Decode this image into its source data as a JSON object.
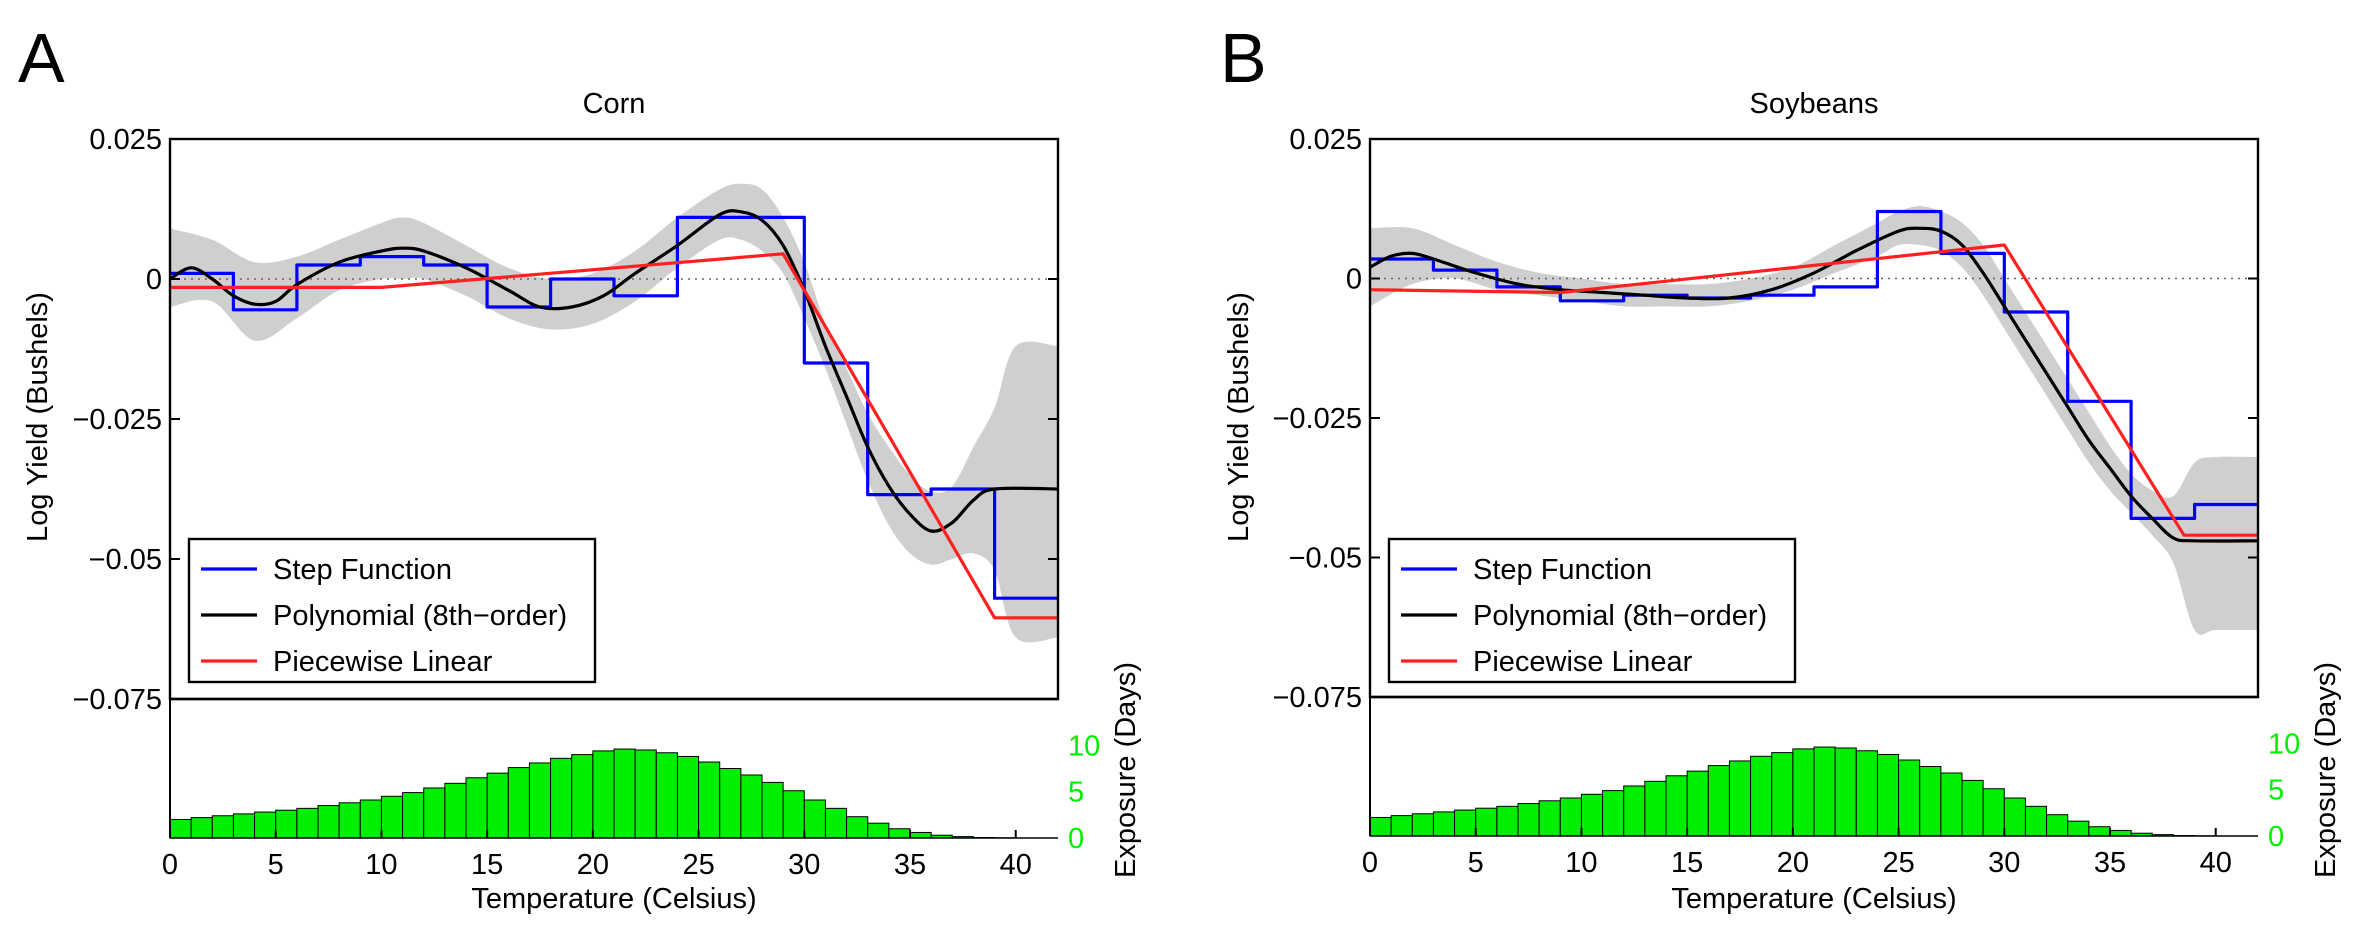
{
  "colors": {
    "step": "#0000ff",
    "polynomial": "#000000",
    "piecewise": "#ff2020",
    "band": "#cfcfcf",
    "histogram": "#00ee00",
    "exposure_axis": "#00ee00"
  },
  "chart_data": [
    {
      "type": "line",
      "panel_label": "A",
      "title": "Corn",
      "xlabel": "Temperature (Celsius)",
      "ylabel": "Log Yield (Bushels)",
      "xlim": [
        0,
        42
      ],
      "ylim": [
        -0.075,
        0.025
      ],
      "x_ticks": [
        "0",
        "5",
        "10",
        "15",
        "20",
        "25",
        "30",
        "35",
        "40"
      ],
      "y_ticks": [
        "0.025",
        "0",
        "−0.025",
        "−0.05",
        "−0.075"
      ],
      "zero_line": "dotted",
      "legend": [
        "Step Function",
        "Polynomial (8th−order)",
        "Piecewise Linear"
      ],
      "legend_position": "bottom-left",
      "series": [
        {
          "name": "Step Function",
          "shape": "step",
          "points": [
            [
              0,
              0.001
            ],
            [
              3,
              0.001
            ],
            [
              3,
              -0.0055
            ],
            [
              6,
              -0.0055
            ],
            [
              6,
              0.0025
            ],
            [
              9,
              0.0025
            ],
            [
              9,
              0.004
            ],
            [
              12,
              0.004
            ],
            [
              12,
              0.0025
            ],
            [
              15,
              0.0025
            ],
            [
              15,
              -0.005
            ],
            [
              18,
              -0.005
            ],
            [
              18,
              0.0
            ],
            [
              21,
              0.0
            ],
            [
              21,
              -0.003
            ],
            [
              24,
              -0.003
            ],
            [
              24,
              0.011
            ],
            [
              30,
              0.011
            ],
            [
              30,
              -0.015
            ],
            [
              33,
              -0.015
            ],
            [
              33,
              -0.0385
            ],
            [
              36,
              -0.0385
            ],
            [
              36,
              -0.0375
            ],
            [
              39,
              -0.0375
            ],
            [
              39,
              -0.057
            ],
            [
              42,
              -0.057
            ]
          ]
        },
        {
          "name": "Polynomial (8th−order)",
          "shape": "smooth",
          "points": [
            [
              0,
              0.0
            ],
            [
              1,
              0.002
            ],
            [
              2,
              0.0
            ],
            [
              3,
              -0.003
            ],
            [
              4,
              -0.0045
            ],
            [
              5,
              -0.004
            ],
            [
              6,
              -0.001
            ],
            [
              8,
              0.003
            ],
            [
              10,
              0.005
            ],
            [
              11,
              0.0055
            ],
            [
              12,
              0.005
            ],
            [
              14,
              0.002
            ],
            [
              16,
              -0.002
            ],
            [
              17.5,
              -0.005
            ],
            [
              19,
              -0.005
            ],
            [
              20.5,
              -0.003
            ],
            [
              22,
              0.001
            ],
            [
              24,
              0.006
            ],
            [
              26,
              0.0115
            ],
            [
              27,
              0.012
            ],
            [
              28,
              0.0105
            ],
            [
              29,
              0.006
            ],
            [
              30,
              -0.002
            ],
            [
              31,
              -0.012
            ],
            [
              32,
              -0.021
            ],
            [
              33,
              -0.03
            ],
            [
              34,
              -0.037
            ],
            [
              35,
              -0.042
            ],
            [
              36,
              -0.045
            ],
            [
              37,
              -0.0435
            ],
            [
              38,
              -0.0395
            ],
            [
              39,
              -0.0375
            ],
            [
              42,
              -0.0375
            ]
          ]
        },
        {
          "name": "Piecewise Linear",
          "shape": "linear",
          "points": [
            [
              0,
              -0.0015
            ],
            [
              10,
              -0.0015
            ],
            [
              29,
              0.0045
            ],
            [
              39,
              -0.0605
            ],
            [
              42,
              -0.0605
            ]
          ]
        }
      ],
      "confidence_band": {
        "x": [
          0,
          2,
          4,
          6,
          8,
          10,
          11,
          12,
          14,
          16,
          18,
          20,
          22,
          24,
          26,
          27,
          28,
          29,
          30,
          31,
          32,
          33,
          34,
          35,
          36,
          37,
          38,
          39,
          40,
          42
        ],
        "upper": [
          0.009,
          0.007,
          0.003,
          0.004,
          0.007,
          0.01,
          0.011,
          0.01,
          0.006,
          0.002,
          0.0,
          0.001,
          0.005,
          0.011,
          0.016,
          0.017,
          0.016,
          0.011,
          0.003,
          -0.008,
          -0.016,
          -0.024,
          -0.03,
          -0.035,
          -0.038,
          -0.037,
          -0.03,
          -0.023,
          -0.012,
          -0.012
        ],
        "lower": [
          -0.005,
          -0.004,
          -0.011,
          -0.007,
          -0.002,
          0.0,
          0.0,
          0.0,
          -0.003,
          -0.007,
          -0.009,
          -0.008,
          -0.004,
          0.002,
          0.007,
          0.007,
          0.005,
          0.001,
          -0.007,
          -0.016,
          -0.026,
          -0.036,
          -0.044,
          -0.049,
          -0.051,
          -0.05,
          -0.049,
          -0.052,
          -0.064,
          -0.064
        ]
      },
      "histogram": {
        "ylabel": "Exposure (Days)",
        "y_ticks": [
          "10",
          "5",
          "0"
        ],
        "ylim": [
          0,
          15
        ],
        "bin_width": 1,
        "values": [
          2.0,
          2.2,
          2.4,
          2.6,
          2.8,
          3.0,
          3.2,
          3.5,
          3.8,
          4.1,
          4.5,
          4.9,
          5.4,
          5.9,
          6.5,
          7.0,
          7.6,
          8.1,
          8.6,
          9.0,
          9.4,
          9.6,
          9.5,
          9.2,
          8.8,
          8.2,
          7.5,
          6.8,
          6.0,
          5.1,
          4.1,
          3.2,
          2.3,
          1.6,
          1.0,
          0.6,
          0.3,
          0.15,
          0.05,
          0.02,
          0.0,
          0.0
        ]
      }
    },
    {
      "type": "line",
      "panel_label": "B",
      "title": "Soybeans",
      "xlabel": "Temperature (Celsius)",
      "ylabel": "Log Yield (Bushels)",
      "xlim": [
        0,
        42
      ],
      "ylim": [
        -0.075,
        0.025
      ],
      "x_ticks": [
        "0",
        "5",
        "10",
        "15",
        "20",
        "25",
        "30",
        "35",
        "40"
      ],
      "y_ticks": [
        "0.025",
        "0",
        "−0.025",
        "−0.05",
        "−0.075"
      ],
      "zero_line": "dotted",
      "legend": [
        "Step Function",
        "Polynomial (8th−order)",
        "Piecewise Linear"
      ],
      "legend_position": "bottom-left",
      "series": [
        {
          "name": "Step Function",
          "shape": "step",
          "points": [
            [
              0,
              0.0035
            ],
            [
              3,
              0.0035
            ],
            [
              3,
              0.0015
            ],
            [
              6,
              0.0015
            ],
            [
              6,
              -0.0015
            ],
            [
              9,
              -0.0015
            ],
            [
              9,
              -0.004
            ],
            [
              12,
              -0.004
            ],
            [
              12,
              -0.003
            ],
            [
              15,
              -0.003
            ],
            [
              15,
              -0.0035
            ],
            [
              18,
              -0.0035
            ],
            [
              18,
              -0.003
            ],
            [
              21,
              -0.003
            ],
            [
              21,
              -0.0015
            ],
            [
              24,
              -0.0015
            ],
            [
              24,
              0.0025
            ],
            [
              24,
              0.012
            ],
            [
              27,
              0.012
            ],
            [
              27,
              0.0045
            ],
            [
              30,
              0.0045
            ],
            [
              30,
              -0.006
            ],
            [
              33,
              -0.006
            ],
            [
              33,
              -0.022
            ],
            [
              36,
              -0.022
            ],
            [
              36,
              -0.043
            ],
            [
              39,
              -0.043
            ],
            [
              39,
              -0.0405
            ],
            [
              42,
              -0.0405
            ]
          ]
        },
        {
          "name": "Polynomial (8th−order)",
          "shape": "smooth",
          "points": [
            [
              0,
              0.002
            ],
            [
              1,
              0.004
            ],
            [
              2,
              0.0045
            ],
            [
              3,
              0.0035
            ],
            [
              5,
              0.001
            ],
            [
              7,
              -0.001
            ],
            [
              9,
              -0.002
            ],
            [
              11,
              -0.0025
            ],
            [
              13,
              -0.003
            ],
            [
              15,
              -0.0035
            ],
            [
              17,
              -0.0035
            ],
            [
              19,
              -0.002
            ],
            [
              21,
              0.001
            ],
            [
              23,
              0.005
            ],
            [
              25,
              0.0085
            ],
            [
              26,
              0.009
            ],
            [
              27,
              0.0085
            ],
            [
              28,
              0.006
            ],
            [
              29,
              0.001
            ],
            [
              30,
              -0.005
            ],
            [
              31,
              -0.011
            ],
            [
              32,
              -0.017
            ],
            [
              33,
              -0.023
            ],
            [
              34,
              -0.029
            ],
            [
              35,
              -0.034
            ],
            [
              36,
              -0.039
            ],
            [
              37,
              -0.043
            ],
            [
              38,
              -0.0465
            ],
            [
              39,
              -0.047
            ],
            [
              42,
              -0.047
            ]
          ]
        },
        {
          "name": "Piecewise Linear",
          "shape": "linear",
          "points": [
            [
              0,
              -0.002
            ],
            [
              9,
              -0.0025
            ],
            [
              30,
              0.006
            ],
            [
              38.5,
              -0.046
            ],
            [
              42,
              -0.046
            ]
          ]
        }
      ],
      "confidence_band": {
        "x": [
          0,
          2,
          4,
          6,
          8,
          10,
          12,
          14,
          16,
          18,
          20,
          22,
          24,
          25,
          26,
          27,
          28,
          29,
          30,
          31,
          32,
          33,
          34,
          35,
          36,
          37,
          38,
          39,
          40,
          42
        ],
        "upper": [
          0.009,
          0.009,
          0.006,
          0.003,
          0.001,
          0.0,
          -0.001,
          -0.001,
          -0.001,
          0.0,
          0.002,
          0.006,
          0.01,
          0.012,
          0.013,
          0.012,
          0.01,
          0.006,
          0.0,
          -0.006,
          -0.012,
          -0.018,
          -0.024,
          -0.03,
          -0.035,
          -0.038,
          -0.039,
          -0.033,
          -0.032,
          -0.032
        ],
        "lower": [
          -0.005,
          -0.001,
          0.0,
          -0.002,
          -0.003,
          -0.004,
          -0.005,
          -0.005,
          -0.005,
          -0.004,
          -0.002,
          0.001,
          0.004,
          0.006,
          0.006,
          0.005,
          0.002,
          -0.003,
          -0.009,
          -0.015,
          -0.021,
          -0.027,
          -0.033,
          -0.038,
          -0.042,
          -0.046,
          -0.051,
          -0.063,
          -0.063,
          -0.063
        ]
      },
      "histogram": {
        "ylabel": "Exposure (Days)",
        "y_ticks": [
          "10",
          "5",
          "0"
        ],
        "ylim": [
          0,
          15
        ],
        "bin_width": 1,
        "values": [
          2.0,
          2.2,
          2.4,
          2.6,
          2.8,
          3.0,
          3.2,
          3.5,
          3.8,
          4.1,
          4.5,
          4.9,
          5.4,
          5.9,
          6.5,
          7.0,
          7.6,
          8.1,
          8.6,
          9.0,
          9.4,
          9.6,
          9.5,
          9.2,
          8.8,
          8.2,
          7.5,
          6.8,
          6.0,
          5.1,
          4.1,
          3.2,
          2.3,
          1.6,
          1.0,
          0.6,
          0.3,
          0.15,
          0.05,
          0.02,
          0.0,
          0.0
        ]
      }
    }
  ]
}
